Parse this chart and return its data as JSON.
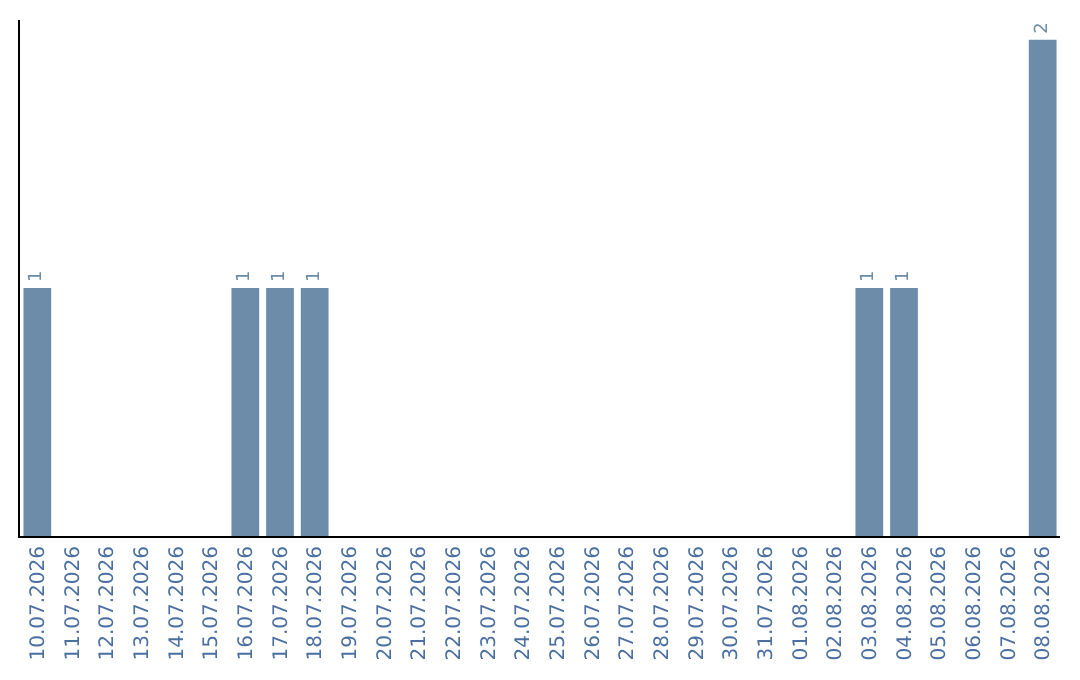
{
  "chart_data": {
    "type": "bar",
    "categories": [
      "10.07.2026",
      "11.07.2026",
      "12.07.2026",
      "13.07.2026",
      "14.07.2026",
      "15.07.2026",
      "16.07.2026",
      "17.07.2026",
      "18.07.2026",
      "19.07.2026",
      "20.07.2026",
      "21.07.2026",
      "22.07.2026",
      "23.07.2026",
      "24.07.2026",
      "25.07.2026",
      "26.07.2026",
      "27.07.2026",
      "28.07.2026",
      "29.07.2026",
      "30.07.2026",
      "31.07.2026",
      "01.08.2026",
      "02.08.2026",
      "03.08.2026",
      "04.08.2026",
      "05.08.2026",
      "06.08.2026",
      "07.08.2026",
      "08.08.2026"
    ],
    "values": [
      1,
      0,
      0,
      0,
      0,
      0,
      1,
      1,
      1,
      0,
      0,
      0,
      0,
      0,
      0,
      0,
      0,
      0,
      0,
      0,
      0,
      0,
      0,
      0,
      1,
      1,
      0,
      0,
      0,
      2
    ],
    "value_labels": [
      "1",
      null,
      null,
      null,
      null,
      null,
      "1",
      "1",
      "1",
      null,
      null,
      null,
      null,
      null,
      null,
      null,
      null,
      null,
      null,
      null,
      null,
      null,
      null,
      null,
      "1",
      "1",
      null,
      null,
      null,
      "2"
    ],
    "color": "#6d8caa",
    "tick_labels": "x"
  }
}
